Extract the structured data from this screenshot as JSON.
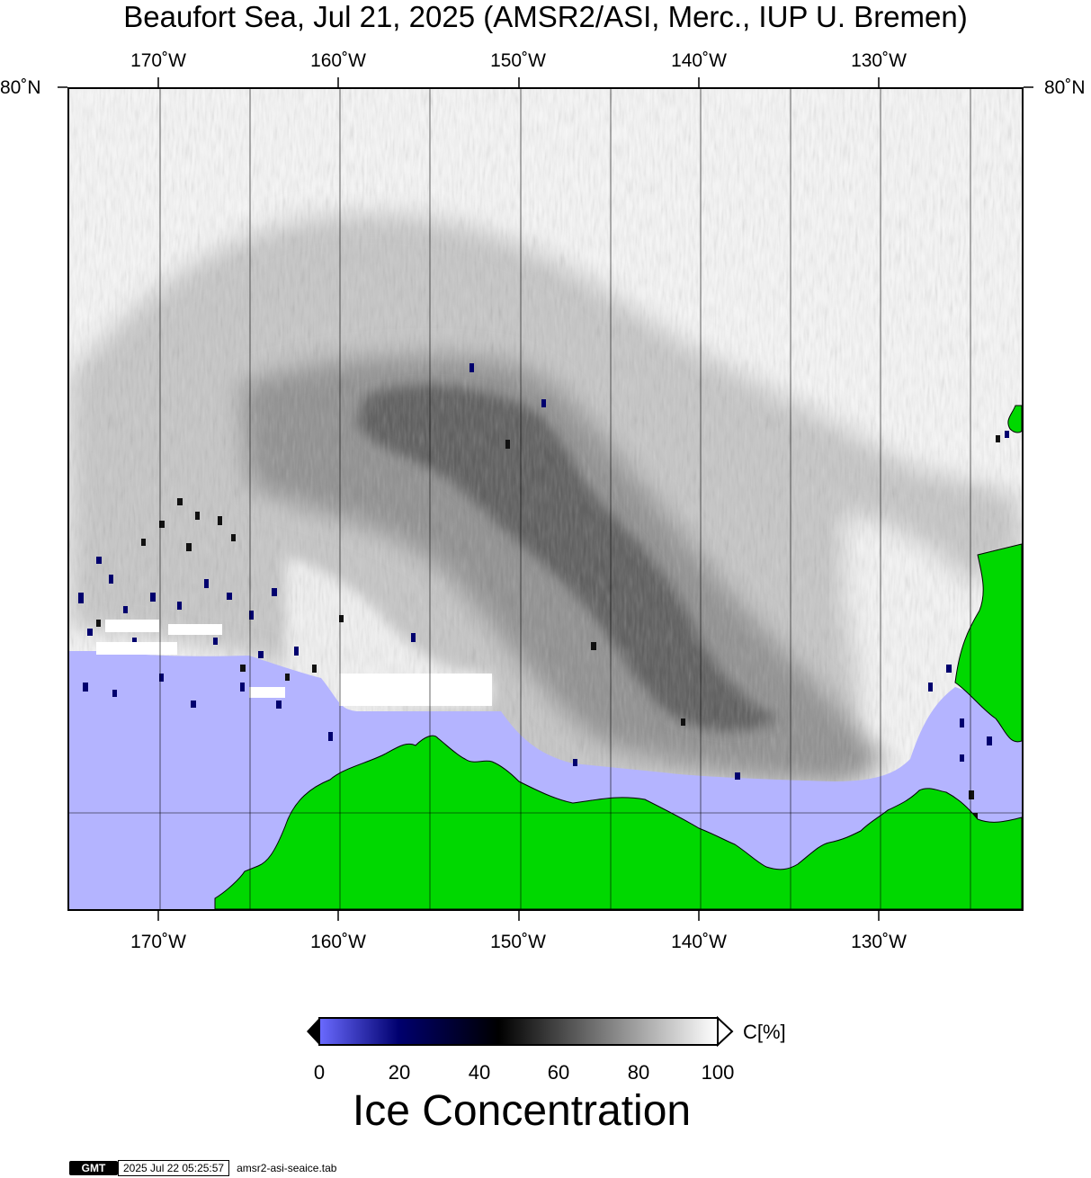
{
  "title": "Beaufort Sea, Jul 21, 2025 (AMSR2/ASI, Merc., IUP U. Bremen)",
  "map": {
    "projection": "Mercator",
    "lon_labels": [
      "170˚W",
      "160˚W",
      "150˚W",
      "140˚W",
      "130˚W"
    ],
    "lat_labels": [
      "80˚N"
    ],
    "colors": {
      "land": "#00d800",
      "open_water": "#b4b4ff",
      "gridline": "#000000"
    },
    "ice_field": {
      "description_color_scale": "0% = #6a6aff, 20% = #00006a, 50% = #000000, 100% = #ffffff"
    }
  },
  "colorbar": {
    "ticks": [
      "0",
      "20",
      "40",
      "60",
      "80",
      "100"
    ],
    "unit": "C[%]",
    "title": "Ice Concentration",
    "colors": [
      "#6a6aff",
      "#00006e",
      "#000000",
      "#ffffff"
    ]
  },
  "footer": {
    "logo": "GMT",
    "timestamp": "2025 Jul 22 05:25:57",
    "file": "amsr2-asi-seaice.tab"
  }
}
